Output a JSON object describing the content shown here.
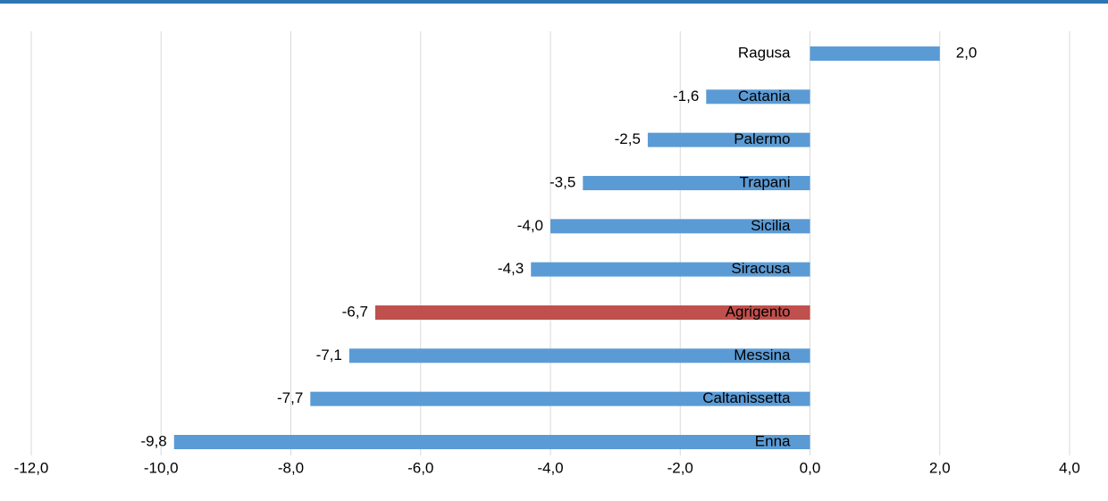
{
  "chart_data": {
    "type": "bar",
    "orientation": "horizontal",
    "categories": [
      "Ragusa",
      "Catania",
      "Palermo",
      "Trapani",
      "Sicilia",
      "Siracusa",
      "Agrigento",
      "Messina",
      "Caltanissetta",
      "Enna"
    ],
    "values": [
      2.0,
      -1.6,
      -2.5,
      -3.5,
      -4.0,
      -4.3,
      -6.7,
      -7.1,
      -7.7,
      -9.8
    ],
    "value_labels": [
      "2,0",
      "-1,6",
      "-2,5",
      "-3,5",
      "-4,0",
      "-4,3",
      "-6,7",
      "-7,1",
      "-7,7",
      "-9,8"
    ],
    "colors": [
      "#5b9bd5",
      "#5b9bd5",
      "#5b9bd5",
      "#5b9bd5",
      "#5b9bd5",
      "#5b9bd5",
      "#c0504d",
      "#5b9bd5",
      "#5b9bd5",
      "#5b9bd5"
    ],
    "xlim": [
      -12,
      4
    ],
    "xticks": [
      {
        "value": -12,
        "label": "-12,0"
      },
      {
        "value": -10,
        "label": "-10,0"
      },
      {
        "value": -8,
        "label": "-8,0"
      },
      {
        "value": -6,
        "label": "-6,0"
      },
      {
        "value": -4,
        "label": "-4,0"
      },
      {
        "value": -2,
        "label": "-2,0"
      },
      {
        "value": 0,
        "label": "0,0"
      },
      {
        "value": 2,
        "label": "2,0"
      },
      {
        "value": 4,
        "label": "4,0"
      }
    ],
    "grid": true
  }
}
